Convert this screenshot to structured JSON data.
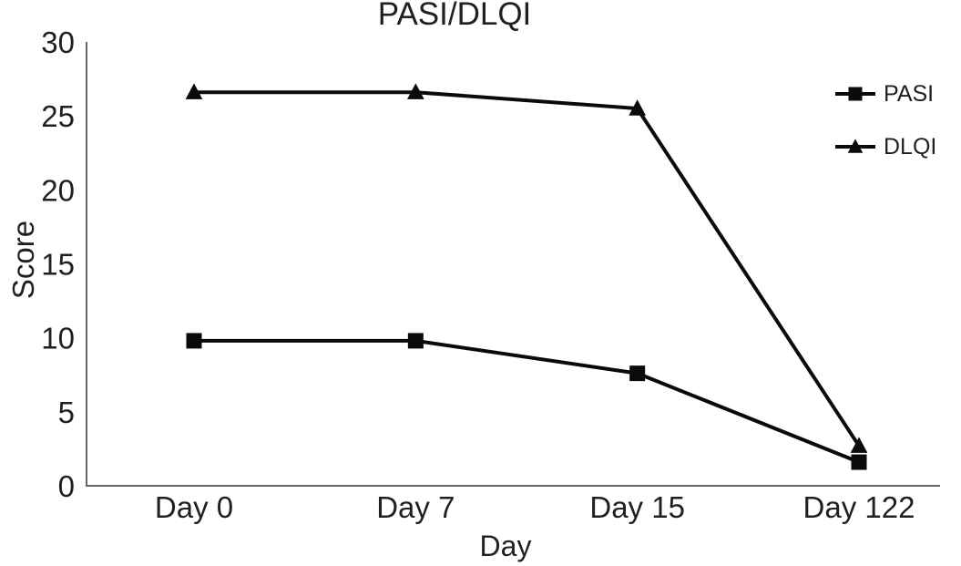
{
  "chart_data": {
    "type": "line",
    "title": "PASI/DLQI",
    "xlabel": "Day",
    "ylabel": "Score",
    "categories": [
      "Day 0",
      "Day 7",
      "Day 15",
      "Day 122"
    ],
    "series": [
      {
        "name": "PASI",
        "marker": "square",
        "values": [
          9.8,
          9.8,
          7.6,
          1.6
        ]
      },
      {
        "name": "DLQI",
        "marker": "triangle",
        "values": [
          26.6,
          26.6,
          25.5,
          2.7
        ]
      }
    ],
    "ylim": [
      0,
      30
    ],
    "yticks": [
      0,
      5,
      10,
      15,
      20,
      25,
      30
    ],
    "grid": false,
    "legend_position": "right",
    "colors": {
      "line": "#0a0a0a",
      "text": "#231f20",
      "axis": "#6a6560"
    }
  }
}
